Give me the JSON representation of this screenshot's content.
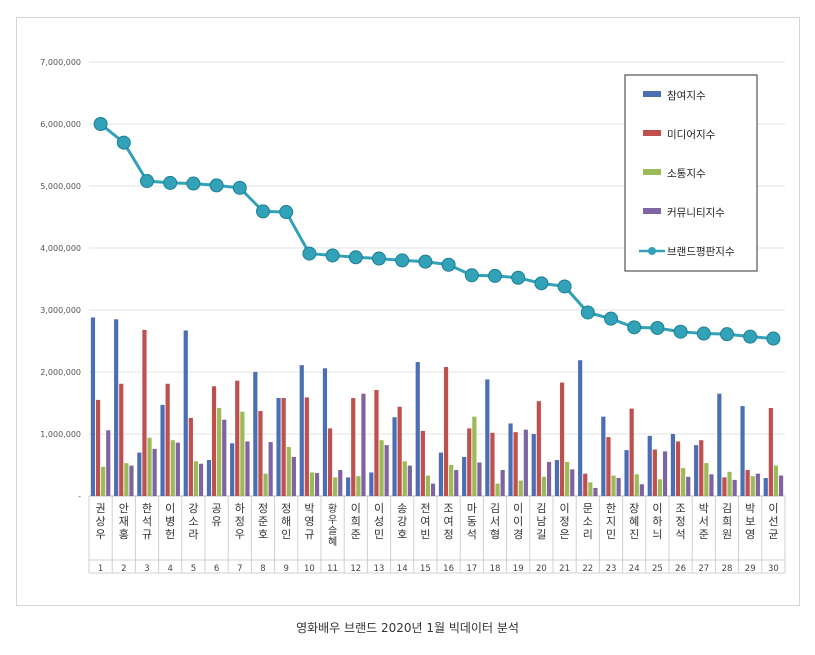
{
  "caption": "영화배우 브랜드 2020년 1월 빅데이터 분석",
  "chart_data": {
    "type": "bar+line",
    "title": "",
    "xlabel": "",
    "ylabel": "",
    "ylim": [
      0,
      7000000
    ],
    "yticks": [
      0,
      1000000,
      2000000,
      3000000,
      4000000,
      5000000,
      6000000,
      7000000
    ],
    "ytick_labels": [
      "-",
      "1,000,000",
      "2,000,000",
      "3,000,000",
      "4,000,000",
      "5,000,000",
      "6,000,000",
      "7,000,000"
    ],
    "grid": true,
    "legend_position": "top-right",
    "categories": [
      "권상우",
      "안재홍",
      "한석규",
      "이병헌",
      "강소라",
      "공유",
      "하정우",
      "정준호",
      "정해인",
      "박영규",
      "황우슬혜",
      "이희준",
      "이성민",
      "송강호",
      "전여빈",
      "조여정",
      "마동석",
      "김서형",
      "이이경",
      "김남길",
      "이정은",
      "문소리",
      "한지민",
      "장혜진",
      "이하늬",
      "조정석",
      "박서준",
      "김희원",
      "박보영",
      "이선균"
    ],
    "ranks": [
      "1",
      "2",
      "3",
      "4",
      "5",
      "6",
      "7",
      "8",
      "9",
      "10",
      "11",
      "12",
      "13",
      "14",
      "15",
      "16",
      "17",
      "18",
      "19",
      "20",
      "21",
      "22",
      "23",
      "24",
      "25",
      "26",
      "27",
      "28",
      "29",
      "30"
    ],
    "series": [
      {
        "name": "참여지수",
        "color": "#4a6fb5",
        "kind": "bar",
        "values": [
          2880000,
          2850000,
          700000,
          1470000,
          2670000,
          580000,
          850000,
          2000000,
          1580000,
          2110000,
          2060000,
          300000,
          380000,
          1270000,
          2160000,
          700000,
          630000,
          1880000,
          1170000,
          1000000,
          580000,
          2190000,
          1280000,
          740000,
          970000,
          1000000,
          820000,
          1650000,
          1450000,
          290000
        ]
      },
      {
        "name": "미디어지수",
        "color": "#c0504d",
        "kind": "bar",
        "values": [
          1550000,
          1810000,
          2680000,
          1810000,
          1260000,
          1770000,
          1860000,
          1370000,
          1580000,
          1590000,
          1090000,
          1580000,
          1710000,
          1440000,
          1050000,
          2080000,
          1090000,
          1020000,
          1030000,
          1530000,
          1830000,
          360000,
          950000,
          1410000,
          750000,
          880000,
          900000,
          300000,
          420000,
          1420000
        ]
      },
      {
        "name": "소통지수",
        "color": "#9bbb59",
        "kind": "bar",
        "values": [
          470000,
          530000,
          940000,
          900000,
          560000,
          1420000,
          1360000,
          360000,
          790000,
          380000,
          300000,
          320000,
          900000,
          560000,
          330000,
          500000,
          1280000,
          200000,
          250000,
          310000,
          550000,
          220000,
          330000,
          350000,
          270000,
          450000,
          530000,
          390000,
          320000,
          490000
        ]
      },
      {
        "name": "커뮤니티지수",
        "color": "#8064a2",
        "kind": "bar",
        "values": [
          1060000,
          490000,
          760000,
          860000,
          520000,
          1230000,
          880000,
          870000,
          630000,
          370000,
          420000,
          1650000,
          820000,
          490000,
          200000,
          420000,
          540000,
          420000,
          1070000,
          550000,
          430000,
          130000,
          290000,
          190000,
          720000,
          310000,
          350000,
          260000,
          360000,
          330000
        ]
      },
      {
        "name": "브랜드평판지수",
        "color": "#31a2b7",
        "kind": "line",
        "values": [
          6000000,
          5700000,
          5080000,
          5050000,
          5040000,
          5010000,
          4970000,
          4590000,
          4580000,
          3910000,
          3880000,
          3850000,
          3830000,
          3800000,
          3780000,
          3730000,
          3560000,
          3550000,
          3520000,
          3430000,
          3380000,
          2960000,
          2860000,
          2720000,
          2710000,
          2650000,
          2620000,
          2610000,
          2570000,
          2540000
        ]
      }
    ]
  }
}
